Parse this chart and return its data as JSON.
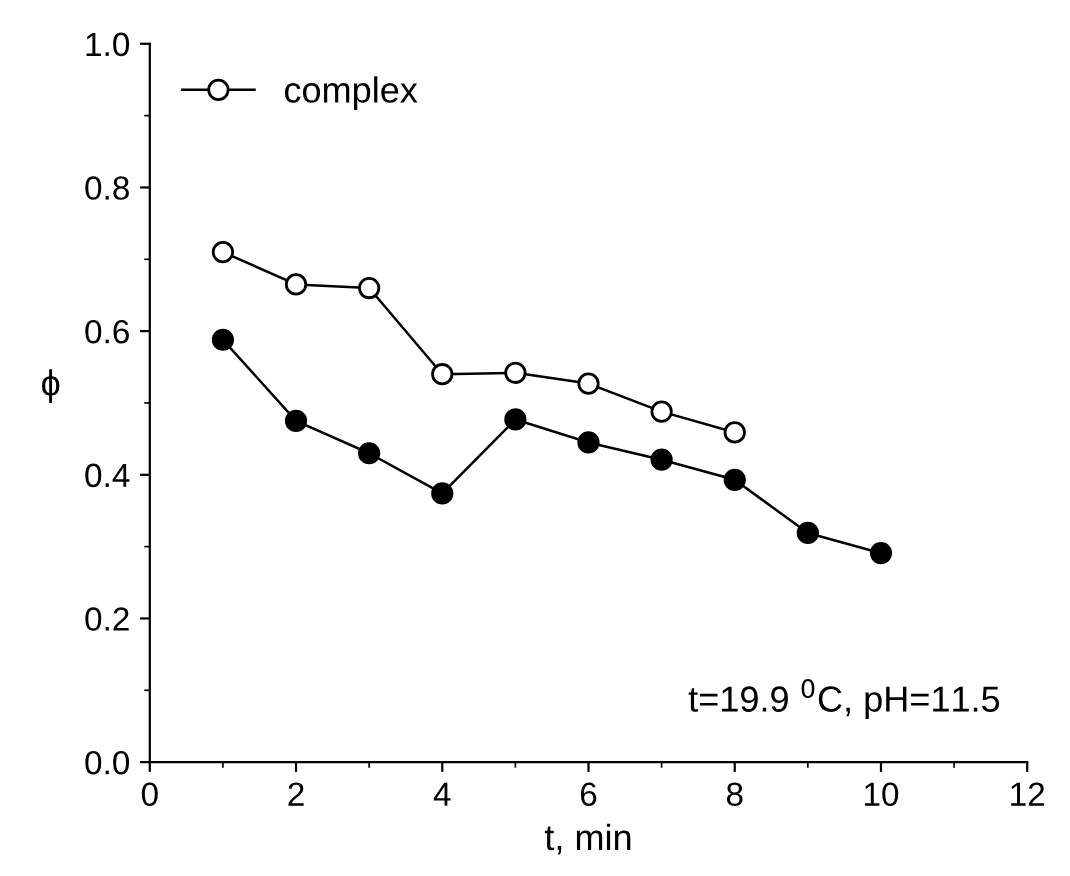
{
  "chart_data": {
    "type": "line",
    "xlabel": "t, min",
    "ylabel": "ϕ",
    "x": [
      1,
      2,
      3,
      4,
      5,
      6,
      7,
      8,
      9,
      10
    ],
    "series": [
      {
        "name": "complex",
        "color": "#000000",
        "marker": "circle",
        "values": [
          0.71,
          0.665,
          0.66,
          0.54,
          0.542,
          0.527,
          0.488,
          0.459,
          null,
          null
        ]
      },
      {
        "color": "#000000",
        "marker": "circle",
        "values": [
          0.588,
          0.475,
          0.43,
          0.374,
          0.477,
          0.445,
          0.421,
          0.393,
          0.319,
          0.291
        ]
      }
    ],
    "xlim": [
      0,
      12
    ],
    "xticks": [
      0,
      2,
      4,
      6,
      8,
      10,
      12
    ],
    "ylim": [
      0,
      1.0
    ],
    "yticks": [
      {
        "value": 0,
        "label": "0.0"
      },
      {
        "value": 0.2,
        "label": "0.2"
      },
      {
        "value": 0.4,
        "label": "0.4"
      },
      {
        "value": 0.6,
        "label": "0.6"
      },
      {
        "value": 0.8,
        "label": "0.8"
      },
      {
        "value": 1.0,
        "label": "1.0"
      }
    ],
    "annotations": [
      {
        "text": "t=19.9 $^{0}$C, pH=11.5"
      }
    ],
    "legend": "top left",
    "grid": false
  }
}
